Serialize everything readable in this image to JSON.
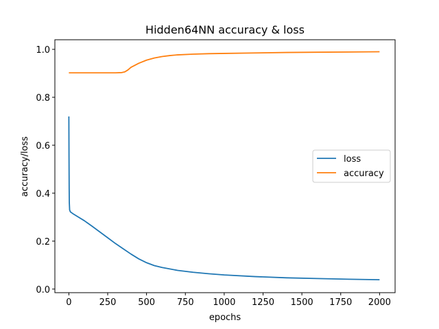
{
  "chart_data": {
    "type": "line",
    "title": "Hidden64NN accuracy & loss",
    "xlabel": "epochs",
    "ylabel": "accuracy/loss",
    "xlim": [
      -90,
      2100
    ],
    "ylim": [
      -0.015,
      1.04
    ],
    "xticks": [
      0,
      250,
      500,
      750,
      1000,
      1250,
      1500,
      1750,
      2000
    ],
    "yticks": [
      0.0,
      0.2,
      0.4,
      0.6,
      0.8,
      1.0
    ],
    "ytick_labels": [
      "0.0",
      "0.2",
      "0.4",
      "0.6",
      "0.8",
      "1.0"
    ],
    "grid": false,
    "legend_position": "center-right",
    "series": [
      {
        "name": "loss",
        "color": "#1f77b4",
        "x": [
          0,
          1,
          2,
          3,
          5,
          10,
          25,
          50,
          100,
          150,
          200,
          250,
          300,
          350,
          400,
          450,
          500,
          550,
          600,
          700,
          800,
          900,
          1000,
          1200,
          1400,
          1600,
          1800,
          2000
        ],
        "y": [
          0.72,
          0.55,
          0.42,
          0.36,
          0.33,
          0.322,
          0.315,
          0.305,
          0.285,
          0.262,
          0.238,
          0.214,
          0.19,
          0.168,
          0.146,
          0.126,
          0.11,
          0.098,
          0.09,
          0.078,
          0.07,
          0.064,
          0.059,
          0.052,
          0.047,
          0.044,
          0.041,
          0.039
        ]
      },
      {
        "name": "accuracy",
        "color": "#ff7f0e",
        "x": [
          0,
          100,
          200,
          300,
          340,
          360,
          380,
          400,
          450,
          500,
          550,
          600,
          650,
          700,
          800,
          900,
          1000,
          1200,
          1400,
          1600,
          1800,
          2000
        ],
        "y": [
          0.902,
          0.902,
          0.902,
          0.902,
          0.903,
          0.906,
          0.914,
          0.925,
          0.942,
          0.955,
          0.964,
          0.97,
          0.974,
          0.977,
          0.98,
          0.982,
          0.983,
          0.985,
          0.987,
          0.988,
          0.989,
          0.99
        ]
      }
    ]
  }
}
